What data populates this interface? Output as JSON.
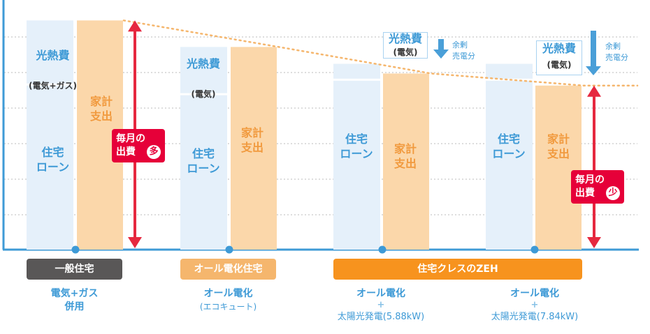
{
  "chart_data": {
    "type": "bar",
    "categories": [
      "一般住宅",
      "オール電化住宅",
      "住宅クレスのZEH",
      "住宅クレスのZEH"
    ],
    "series": [
      {
        "name": "住宅ローン",
        "values": [
          0.68,
          0.64,
          0.7,
          0.7
        ]
      },
      {
        "name": "光熱費",
        "values": [
          0.27,
          0.2,
          0.07,
          0.07
        ]
      },
      {
        "name": "家計支出",
        "values": [
          0.95,
          0.84,
          0.73,
          0.68
        ]
      }
    ],
    "ylim": [
      0,
      1
    ],
    "grid": true
  },
  "labels": {
    "loan": "住宅\nローン",
    "expense": "家計\n支出",
    "utility": "光熱費",
    "utility_sub_gas": "(電気+ガス)",
    "utility_sub_elec": "(電気)",
    "surplus": "余剰\n売電分"
  },
  "badges": {
    "high": {
      "text": "毎月の\n出費",
      "mark": "多"
    },
    "low": {
      "text": "毎月の\n出費",
      "mark": "少"
    }
  },
  "categories_bar": [
    {
      "label": "一般住宅",
      "color": "#595757"
    },
    {
      "label": "オール電化住宅",
      "color": "#f5b66d"
    },
    {
      "label": "住宅クレスのZEH",
      "color": "#f7931e"
    }
  ],
  "under_labels": {
    "g1": {
      "main": "電気+ガス\n併用"
    },
    "g2": {
      "main": "オール電化",
      "paren": "(エコキュート)"
    },
    "g3": {
      "main": "オール電化",
      "plus": "+",
      "sub": "太陽光発電(5.88kW)"
    },
    "g4": {
      "main": "オール電化",
      "plus": "+",
      "sub": "太陽光発電(7.84kW)"
    }
  },
  "colors": {
    "loan": "#e5f0fa",
    "expense": "#fbd7aa",
    "axis": "#3e9ad6",
    "arrow": "#e6283f",
    "down_arrow": "#4a9fd8",
    "trend": "#f5b66d"
  }
}
